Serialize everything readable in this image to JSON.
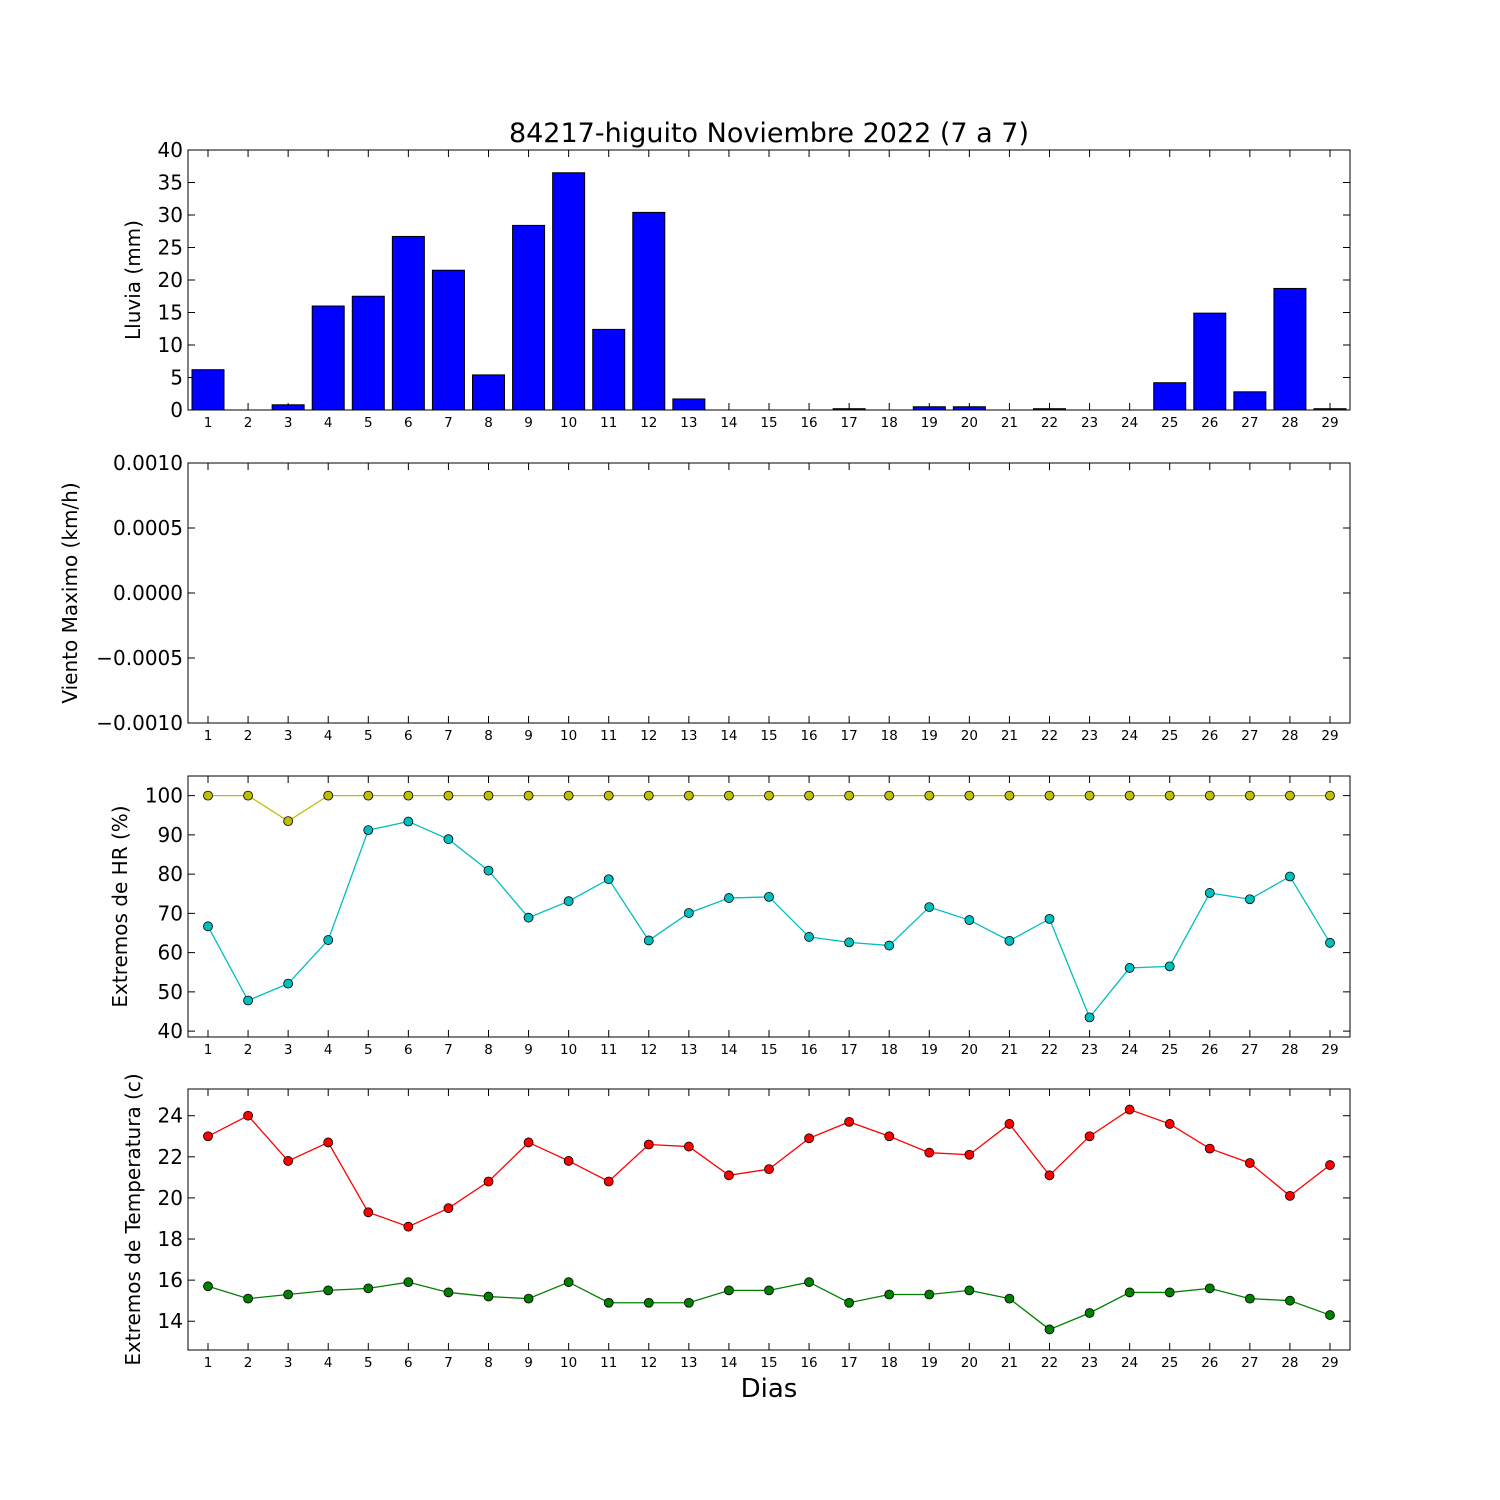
{
  "figure_title": "84217-higuito Noviembre 2022  (7 a 7)",
  "xlabel": "Dias",
  "chart_data": [
    {
      "type": "bar",
      "ylabel": "Lluvia (mm)",
      "categories": [
        "1",
        "2",
        "3",
        "4",
        "5",
        "6",
        "7",
        "8",
        "9",
        "10",
        "11",
        "12",
        "13",
        "14",
        "15",
        "16",
        "17",
        "18",
        "19",
        "20",
        "21",
        "22",
        "23",
        "24",
        "25",
        "26",
        "27",
        "28",
        "29"
      ],
      "ylim": [
        0,
        40
      ],
      "yticks": [
        0,
        5,
        10,
        15,
        20,
        25,
        30,
        35,
        40
      ],
      "ytick_labels": [
        "0",
        "5",
        "10",
        "15",
        "20",
        "25",
        "30",
        "35",
        "40"
      ],
      "series": [
        {
          "color": "#0000ff",
          "values": [
            6.2,
            0,
            0.8,
            16,
            17.5,
            26.7,
            21.5,
            5.4,
            28.4,
            36.5,
            12.4,
            30.4,
            1.7,
            0,
            0,
            0,
            0.2,
            0,
            0.5,
            0.5,
            0,
            0.2,
            0,
            0,
            4.2,
            14.9,
            2.8,
            18.7,
            0.2
          ]
        }
      ]
    },
    {
      "type": "line",
      "ylabel": "Viento Maximo (km/h)",
      "categories": [
        "1",
        "2",
        "3",
        "4",
        "5",
        "6",
        "7",
        "8",
        "9",
        "10",
        "11",
        "12",
        "13",
        "14",
        "15",
        "16",
        "17",
        "18",
        "19",
        "20",
        "21",
        "22",
        "23",
        "24",
        "25",
        "26",
        "27",
        "28",
        "29"
      ],
      "ylim": [
        -0.001,
        0.001
      ],
      "yticks": [
        -0.001,
        -0.0005,
        0,
        0.0005,
        0.001
      ],
      "ytick_labels": [
        "−0.0010",
        "−0.0005",
        "0.0000",
        "0.0005",
        "0.0010"
      ],
      "series": []
    },
    {
      "type": "line",
      "ylabel": "Extremos de HR (%)",
      "categories": [
        "1",
        "2",
        "3",
        "4",
        "5",
        "6",
        "7",
        "8",
        "9",
        "10",
        "11",
        "12",
        "13",
        "14",
        "15",
        "16",
        "17",
        "18",
        "19",
        "20",
        "21",
        "22",
        "23",
        "24",
        "25",
        "26",
        "27",
        "28",
        "29"
      ],
      "ylim": [
        38.5,
        105
      ],
      "yticks": [
        40,
        50,
        60,
        70,
        80,
        90,
        100
      ],
      "ytick_labels": [
        "40",
        "50",
        "60",
        "70",
        "80",
        "90",
        "100"
      ],
      "series": [
        {
          "color": "#bfbf00",
          "values": [
            100,
            100,
            93.5,
            100,
            100,
            100,
            100,
            100,
            100,
            100,
            100,
            100,
            100,
            100,
            100,
            100,
            100,
            100,
            100,
            100,
            100,
            100,
            100,
            100,
            100,
            100,
            100,
            100,
            100
          ]
        },
        {
          "color": "#00bfbf",
          "values": [
            66.7,
            47.8,
            52.1,
            63.2,
            91.2,
            93.4,
            88.9,
            80.9,
            68.9,
            73.1,
            78.7,
            63.1,
            70.1,
            73.9,
            74.2,
            64,
            62.6,
            61.8,
            71.6,
            68.3,
            63,
            68.6,
            43.5,
            56.1,
            56.5,
            75.2,
            73.6,
            79.4,
            62.5
          ]
        }
      ]
    },
    {
      "type": "line",
      "ylabel": "Extremos de Temperatura (c)",
      "categories": [
        "1",
        "2",
        "3",
        "4",
        "5",
        "6",
        "7",
        "8",
        "9",
        "10",
        "11",
        "12",
        "13",
        "14",
        "15",
        "16",
        "17",
        "18",
        "19",
        "20",
        "21",
        "22",
        "23",
        "24",
        "25",
        "26",
        "27",
        "28",
        "29"
      ],
      "ylim": [
        12.6,
        25.3
      ],
      "yticks": [
        14,
        16,
        18,
        20,
        22,
        24
      ],
      "ytick_labels": [
        "14",
        "16",
        "18",
        "20",
        "22",
        "24"
      ],
      "series": [
        {
          "color": "#ff0000",
          "values": [
            23,
            24,
            21.8,
            22.7,
            19.3,
            18.6,
            19.5,
            20.8,
            22.7,
            21.8,
            20.8,
            22.6,
            22.5,
            21.1,
            21.4,
            22.9,
            23.7,
            23,
            22.2,
            22.1,
            23.6,
            21.1,
            23,
            24.3,
            23.6,
            22.4,
            21.7,
            20.1,
            21.6
          ]
        },
        {
          "color": "#008000",
          "values": [
            15.7,
            15.1,
            15.3,
            15.5,
            15.6,
            15.9,
            15.4,
            15.2,
            15.1,
            15.9,
            14.9,
            14.9,
            14.9,
            15.5,
            15.5,
            15.9,
            14.9,
            15.3,
            15.3,
            15.5,
            15.1,
            13.6,
            14.4,
            15.4,
            15.4,
            15.6,
            15.1,
            15,
            14.3
          ]
        }
      ]
    }
  ]
}
